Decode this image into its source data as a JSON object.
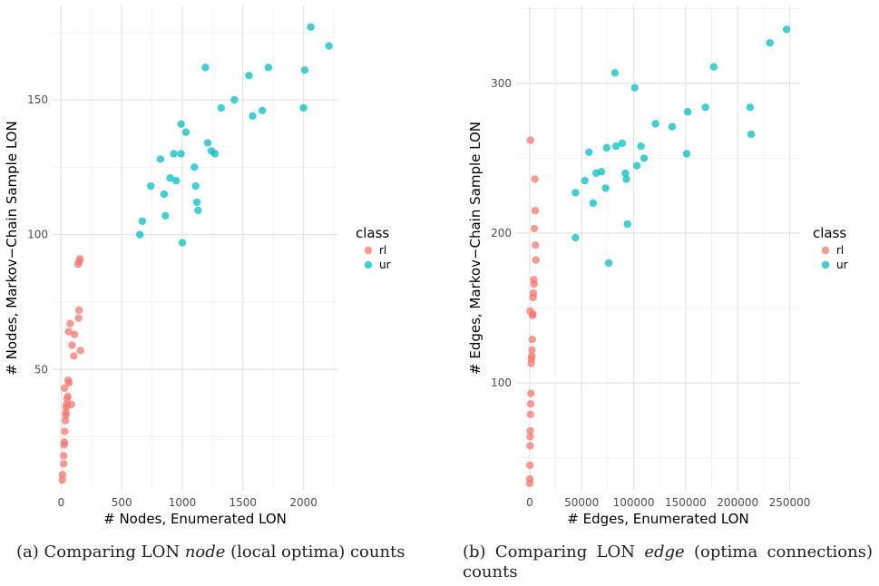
{
  "chart_data": [
    {
      "type": "scatter",
      "xlabel": "# Nodes, Enumerated LON",
      "ylabel": "# Nodes, Markov−Chain Sample LON",
      "xlim": [
        -70,
        2280
      ],
      "ylim": [
        5,
        185
      ],
      "xticks": [
        0,
        500,
        1000,
        1500,
        2000
      ],
      "xtick_labels": [
        "0",
        "500",
        "1000",
        "1500",
        "2000"
      ],
      "yticks": [
        50,
        100,
        150
      ],
      "ytick_labels": [
        "50",
        "100",
        "150"
      ],
      "grid": true,
      "legend_title": "class",
      "legend_position": "right",
      "series": [
        {
          "name": "rl",
          "color": "#F8766D",
          "x": [
            10,
            12,
            22,
            22,
            25,
            27,
            30,
            35,
            38,
            40,
            42,
            45,
            50,
            55,
            58,
            62,
            65,
            75,
            85,
            90,
            105,
            110,
            140,
            145,
            148,
            150,
            155,
            160,
            28
          ],
          "y": [
            9,
            11,
            15,
            18,
            22,
            23,
            27,
            31,
            33,
            34,
            36,
            37,
            39,
            40,
            46,
            64,
            45,
            67,
            37,
            59,
            55,
            63,
            89,
            69,
            72,
            90,
            91,
            57,
            43
          ]
        },
        {
          "name": "ur",
          "color": "#00BFC4",
          "x": [
            650,
            670,
            740,
            820,
            850,
            860,
            900,
            930,
            950,
            990,
            1000,
            1030,
            1100,
            1110,
            1120,
            1130,
            1190,
            1210,
            1240,
            1270,
            1320,
            1430,
            1550,
            1580,
            1660,
            1710,
            2000,
            2010,
            2060,
            2210,
            990
          ],
          "y": [
            100,
            105,
            118,
            128,
            115,
            107,
            121,
            130,
            120,
            141,
            97,
            138,
            125,
            118,
            112,
            109,
            162,
            134,
            131,
            130,
            147,
            150,
            159,
            144,
            146,
            162,
            147,
            161,
            177,
            170,
            130
          ]
        }
      ]
    },
    {
      "type": "scatter",
      "xlabel": "# Edges, Enumerated LON",
      "ylabel": "# Edges, Markov−Chain Sample LON",
      "xlim": [
        -13000,
        260000
      ],
      "ylim": [
        28,
        352
      ],
      "xticks": [
        0,
        50000,
        100000,
        150000,
        200000,
        250000
      ],
      "xtick_labels": [
        "0",
        "50000",
        "100000",
        "150000",
        "200000",
        "250000"
      ],
      "yticks": [
        100,
        200,
        300
      ],
      "ytick_labels": [
        "100",
        "200",
        "300"
      ],
      "grid": true,
      "legend_title": "class",
      "legend_position": "right",
      "series": [
        {
          "name": "rl",
          "color": "#F8766D",
          "x": [
            100,
            200,
            300,
            400,
            500,
            600,
            800,
            1000,
            1200,
            1500,
            1800,
            2000,
            2200,
            2500,
            2800,
            3000,
            3300,
            3600,
            4000,
            4200,
            4500,
            5000,
            5300,
            5600,
            6000,
            400,
            800
          ],
          "y": [
            33,
            36,
            45,
            58,
            64,
            68,
            79,
            86,
            93,
            113,
            116,
            118,
            122,
            129,
            145,
            146,
            157,
            160,
            169,
            166,
            203,
            236,
            215,
            192,
            182,
            148,
            262
          ]
        },
        {
          "name": "ur",
          "color": "#00BFC4",
          "x": [
            44000,
            44000,
            53000,
            57000,
            61000,
            64000,
            69000,
            73000,
            74000,
            76000,
            82000,
            83000,
            89000,
            92000,
            93000,
            94000,
            101000,
            103000,
            107000,
            110000,
            121000,
            137000,
            151000,
            152000,
            169000,
            177000,
            212000,
            213000,
            231000,
            247000
          ],
          "y": [
            197,
            227,
            235,
            254,
            220,
            240,
            241,
            230,
            257,
            180,
            307,
            258,
            260,
            240,
            236,
            206,
            297,
            245,
            258,
            250,
            273,
            271,
            253,
            281,
            284,
            311,
            284,
            266,
            327,
            336
          ]
        }
      ]
    }
  ],
  "captions": {
    "a_prefix": "(a) Comparing LON ",
    "a_italic": "node",
    "a_suffix": " (local optima) counts",
    "b_prefix": "(b) Comparing LON ",
    "b_italic": "edge",
    "b_suffix": " (optima connections) counts"
  }
}
